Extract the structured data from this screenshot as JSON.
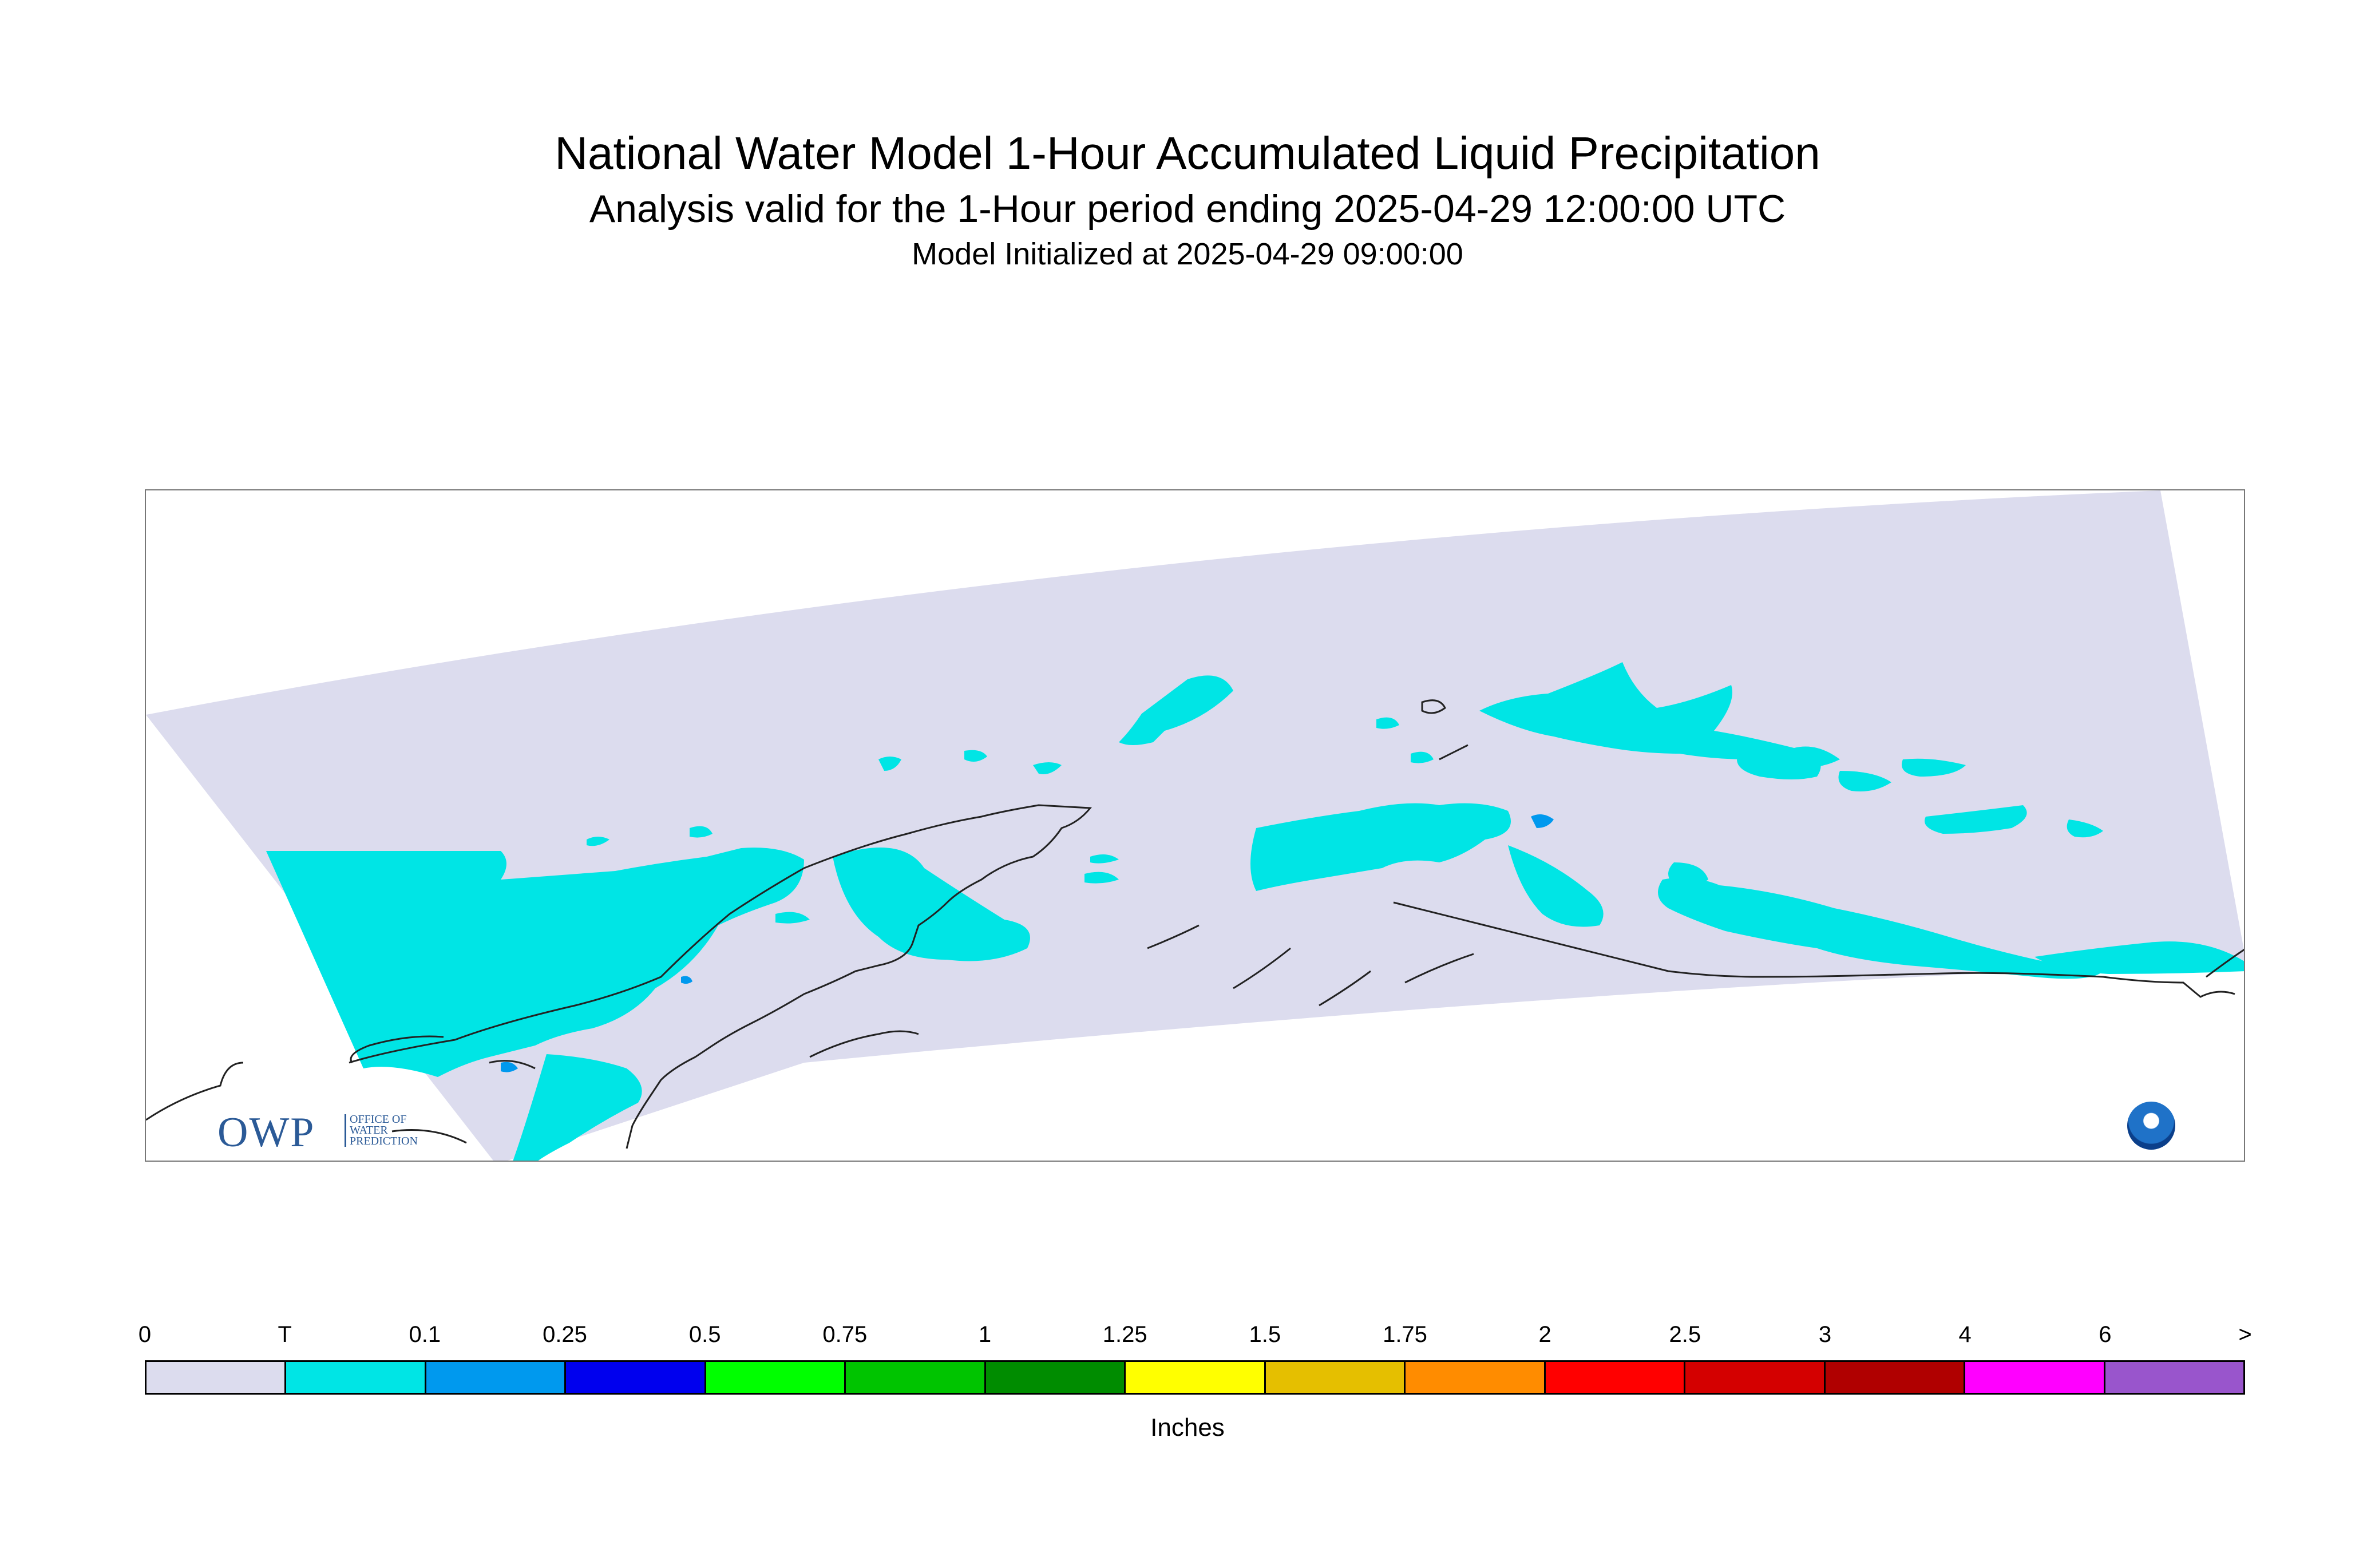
{
  "title": "National Water Model 1-Hour Accumulated Liquid Precipitation",
  "subtitle": "Analysis valid for the 1-Hour period ending 2025-04-29 12:00:00 UTC",
  "init_text": "Model Initialized at 2025-04-29 09:00:00",
  "logo": {
    "letters": "OWP",
    "line1": "OFFICE OF",
    "line2": "WATER",
    "line3": "PREDICTION",
    "agency_icon": "noaa-logo-icon"
  },
  "legend": {
    "units": "Inches",
    "tick_labels": [
      "0",
      "T",
      "0.1",
      "0.25",
      "0.5",
      "0.75",
      "1",
      "1.25",
      "1.5",
      "1.75",
      "2",
      "2.5",
      "3",
      "4",
      "6",
      ">"
    ],
    "colors": [
      "#dcdcee",
      "#00e5e5",
      "#0099ee",
      "#0000ee",
      "#00ff00",
      "#00c400",
      "#008c00",
      "#ffff00",
      "#e5bf00",
      "#ff8c00",
      "#ff0000",
      "#d40000",
      "#b00000",
      "#ff00ff",
      "#9955cc"
    ]
  },
  "map_colors": {
    "domain_fill": "#dcdcee",
    "trace": "#00e5e5",
    "light_blue": "#0099ee",
    "coastline": "#222222"
  }
}
